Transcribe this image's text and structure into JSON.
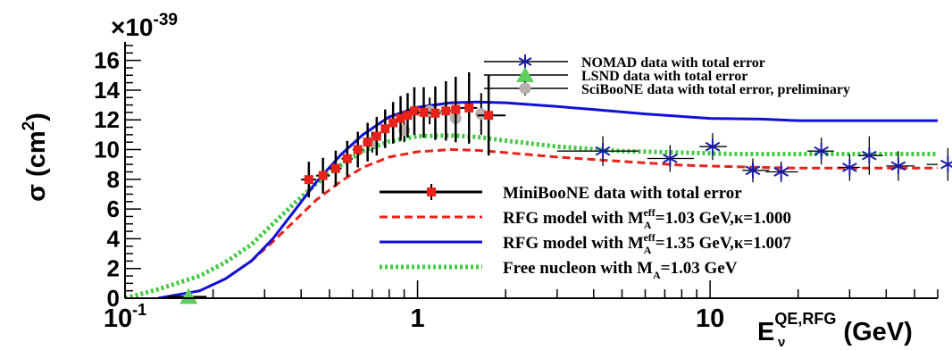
{
  "chart_data": {
    "type": "line",
    "x_scale": "log",
    "xlim": [
      0.1,
      60
    ],
    "ylim": [
      0,
      17
    ],
    "y_exponent_label": "×10",
    "y_exponent_power": "-39",
    "ylabel": {
      "symbol": "σ",
      "unit_open": " (cm",
      "unit_power": "2",
      "unit_close": ")"
    },
    "xlabel": {
      "base": "E",
      "sub": "ν",
      "sup": "QE,RFG",
      "unit": " (GeV)"
    },
    "x_major_ticks": [
      {
        "value": 0.1,
        "label": "10",
        "power": "-1"
      },
      {
        "value": 1,
        "label": "1",
        "power": ""
      },
      {
        "value": 10,
        "label": "10",
        "power": ""
      }
    ],
    "y_ticks": [
      0,
      2,
      4,
      6,
      8,
      10,
      12,
      14,
      16
    ],
    "grid": false,
    "legend_top": [
      {
        "text": "NOMAD data with total error",
        "marker": "asterisk",
        "color": "#1a1aa8"
      },
      {
        "text": "LSND data with total error",
        "marker": "triangle",
        "color": "#5ecf5e"
      },
      {
        "text": "SciBooNE data with total error, preliminary",
        "marker": "circle",
        "color": "#b8b0ac"
      }
    ],
    "legend_bottom": [
      {
        "text_parts": [
          "MiniBooNE data with total error"
        ],
        "style": "data-square",
        "color": "#e8221a"
      },
      {
        "text_parts": [
          "RFG model with M",
          "A",
          "eff",
          "=1.03 GeV,κ=1.000"
        ],
        "style": "dashed",
        "color": "#e8221a"
      },
      {
        "text_parts": [
          "RFG model with M",
          "A",
          "eff",
          "=1.35 GeV,κ=1.007"
        ],
        "style": "solid",
        "color": "#1010d8"
      },
      {
        "text_parts": [
          "Free nucleon with M",
          "A",
          "",
          "=1.03 GeV"
        ],
        "style": "dotted",
        "color": "#44c844"
      }
    ],
    "series": [
      {
        "style": "solid",
        "color": "#1010d8",
        "x": [
          0.13,
          0.18,
          0.22,
          0.27,
          0.32,
          0.38,
          0.45,
          0.55,
          0.65,
          0.8,
          1.0,
          1.3,
          1.6,
          2.0,
          3.0,
          4.0,
          6.0,
          10,
          15,
          20,
          30,
          60
        ],
        "y": [
          0,
          0.5,
          1.3,
          2.5,
          4.0,
          5.9,
          7.8,
          9.7,
          11.0,
          12.2,
          12.85,
          13.15,
          13.2,
          13.15,
          12.9,
          12.7,
          12.4,
          12.1,
          12.05,
          11.95,
          11.95,
          11.95
        ]
      },
      {
        "style": "dashed",
        "color": "#e8221a",
        "x": [
          0.13,
          0.18,
          0.22,
          0.27,
          0.32,
          0.38,
          0.45,
          0.55,
          0.65,
          0.8,
          1.0,
          1.3,
          1.6,
          2.0,
          3.0,
          5.0,
          8.0,
          12,
          15,
          20,
          30,
          60
        ],
        "y": [
          0,
          0.5,
          1.3,
          2.5,
          3.8,
          5.2,
          6.6,
          7.9,
          8.8,
          9.5,
          9.85,
          10.0,
          9.95,
          9.8,
          9.5,
          9.2,
          8.95,
          8.85,
          8.8,
          8.75,
          8.75,
          8.75
        ]
      },
      {
        "style": "dotted",
        "color": "#44c844",
        "x": [
          0.1,
          0.13,
          0.18,
          0.22,
          0.27,
          0.32,
          0.38,
          0.45,
          0.55,
          0.65,
          0.8,
          1.0,
          1.3,
          1.6,
          2.0,
          3.0,
          5.0,
          8.0,
          12,
          20,
          30,
          60
        ],
        "y": [
          0,
          0.6,
          1.5,
          2.4,
          3.6,
          5.0,
          6.4,
          7.7,
          9.0,
          9.9,
          10.55,
          10.9,
          10.95,
          10.85,
          10.6,
          10.2,
          9.9,
          9.8,
          9.7,
          9.7,
          9.7,
          9.7
        ]
      }
    ],
    "miniboone": {
      "color": "#e8221a",
      "x": [
        0.425,
        0.475,
        0.525,
        0.575,
        0.625,
        0.675,
        0.725,
        0.775,
        0.825,
        0.875,
        0.925,
        0.975,
        1.05,
        1.15,
        1.25,
        1.35,
        1.5,
        1.75
      ],
      "y": [
        7.98,
        8.25,
        8.73,
        9.39,
        10.0,
        10.5,
        10.9,
        11.4,
        11.8,
        12.1,
        12.3,
        12.6,
        12.5,
        12.45,
        12.6,
        12.7,
        12.8,
        12.3
      ],
      "err": [
        1.2,
        1.2,
        1.2,
        1.2,
        1.2,
        1.3,
        1.3,
        1.3,
        1.4,
        1.5,
        1.5,
        1.6,
        1.7,
        1.8,
        2.0,
        2.2,
        2.4,
        2.7
      ],
      "xerr_lo": [
        0.025,
        0.025,
        0.025,
        0.025,
        0.025,
        0.025,
        0.025,
        0.025,
        0.025,
        0.025,
        0.025,
        0.025,
        0.05,
        0.05,
        0.05,
        0.05,
        0.1,
        0.15
      ],
      "xerr_hi": [
        0.025,
        0.025,
        0.025,
        0.025,
        0.025,
        0.025,
        0.025,
        0.025,
        0.025,
        0.025,
        0.025,
        0.025,
        0.05,
        0.05,
        0.05,
        0.05,
        0.1,
        0.25
      ]
    },
    "sciboone": {
      "color": "#b8b0ac",
      "x": [
        0.7,
        0.9,
        1.1,
        1.35,
        1.65
      ],
      "y": [
        10.5,
        11.3,
        12.6,
        12.1,
        12.4
      ],
      "err": [
        0.7,
        0.8,
        0.9,
        1.2,
        1.4
      ]
    },
    "lsnd": {
      "color": "#5ecf5e",
      "x": [
        0.165
      ],
      "y": [
        0.1
      ],
      "xerr_lo": [
        0.025
      ],
      "xerr_hi": [
        0.025
      ]
    },
    "nomad": {
      "color": "#1a1aa8",
      "x": [
        4.3,
        7.3,
        10.2,
        14.0,
        17.5,
        24.0,
        30.0,
        35.0,
        44.0,
        65.0
      ],
      "y": [
        9.9,
        9.4,
        10.2,
        8.6,
        8.5,
        9.9,
        8.8,
        9.6,
        8.9,
        9.0
      ],
      "err": [
        1.0,
        0.9,
        0.9,
        0.8,
        0.7,
        0.9,
        0.9,
        1.3,
        1.0,
        1.1
      ],
      "xerr_lo": [
        1.3,
        1.2,
        1.0,
        1.1,
        2.0,
        2.5,
        2.6,
        2.9,
        4.0,
        10.0
      ],
      "xerr_hi": [
        1.4,
        1.5,
        1.2,
        1.9,
        2.5,
        2.5,
        2.6,
        4.0,
        6.0,
        10.0
      ]
    }
  }
}
